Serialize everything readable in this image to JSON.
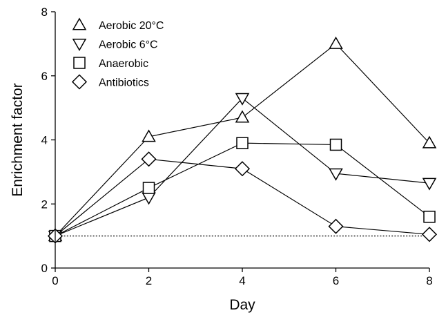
{
  "chart_data": {
    "type": "line",
    "xlabel": "Day",
    "ylabel": "Enrichment factor",
    "xlim": [
      0,
      8
    ],
    "ylim": [
      0,
      8
    ],
    "xticks": [
      0,
      2,
      4,
      6,
      8
    ],
    "yticks": [
      0,
      2,
      4,
      6,
      8
    ],
    "x": [
      0,
      2,
      4,
      6,
      8
    ],
    "grid": false,
    "legend_position": "top-left",
    "reference_line": {
      "y": 1,
      "style": "dotted"
    },
    "series": [
      {
        "name": "Aerobic 20°C",
        "marker": "triangle-up",
        "values": [
          1.0,
          4.1,
          4.7,
          7.0,
          3.9
        ]
      },
      {
        "name": "Aerobic 6°C",
        "marker": "triangle-down",
        "values": [
          1.0,
          2.2,
          5.3,
          2.95,
          2.65
        ]
      },
      {
        "name": "Anaerobic",
        "marker": "square",
        "values": [
          1.0,
          2.5,
          3.9,
          3.85,
          1.6
        ]
      },
      {
        "name": "Antibiotics",
        "marker": "diamond",
        "values": [
          1.0,
          3.4,
          3.1,
          1.3,
          1.05
        ]
      }
    ]
  }
}
